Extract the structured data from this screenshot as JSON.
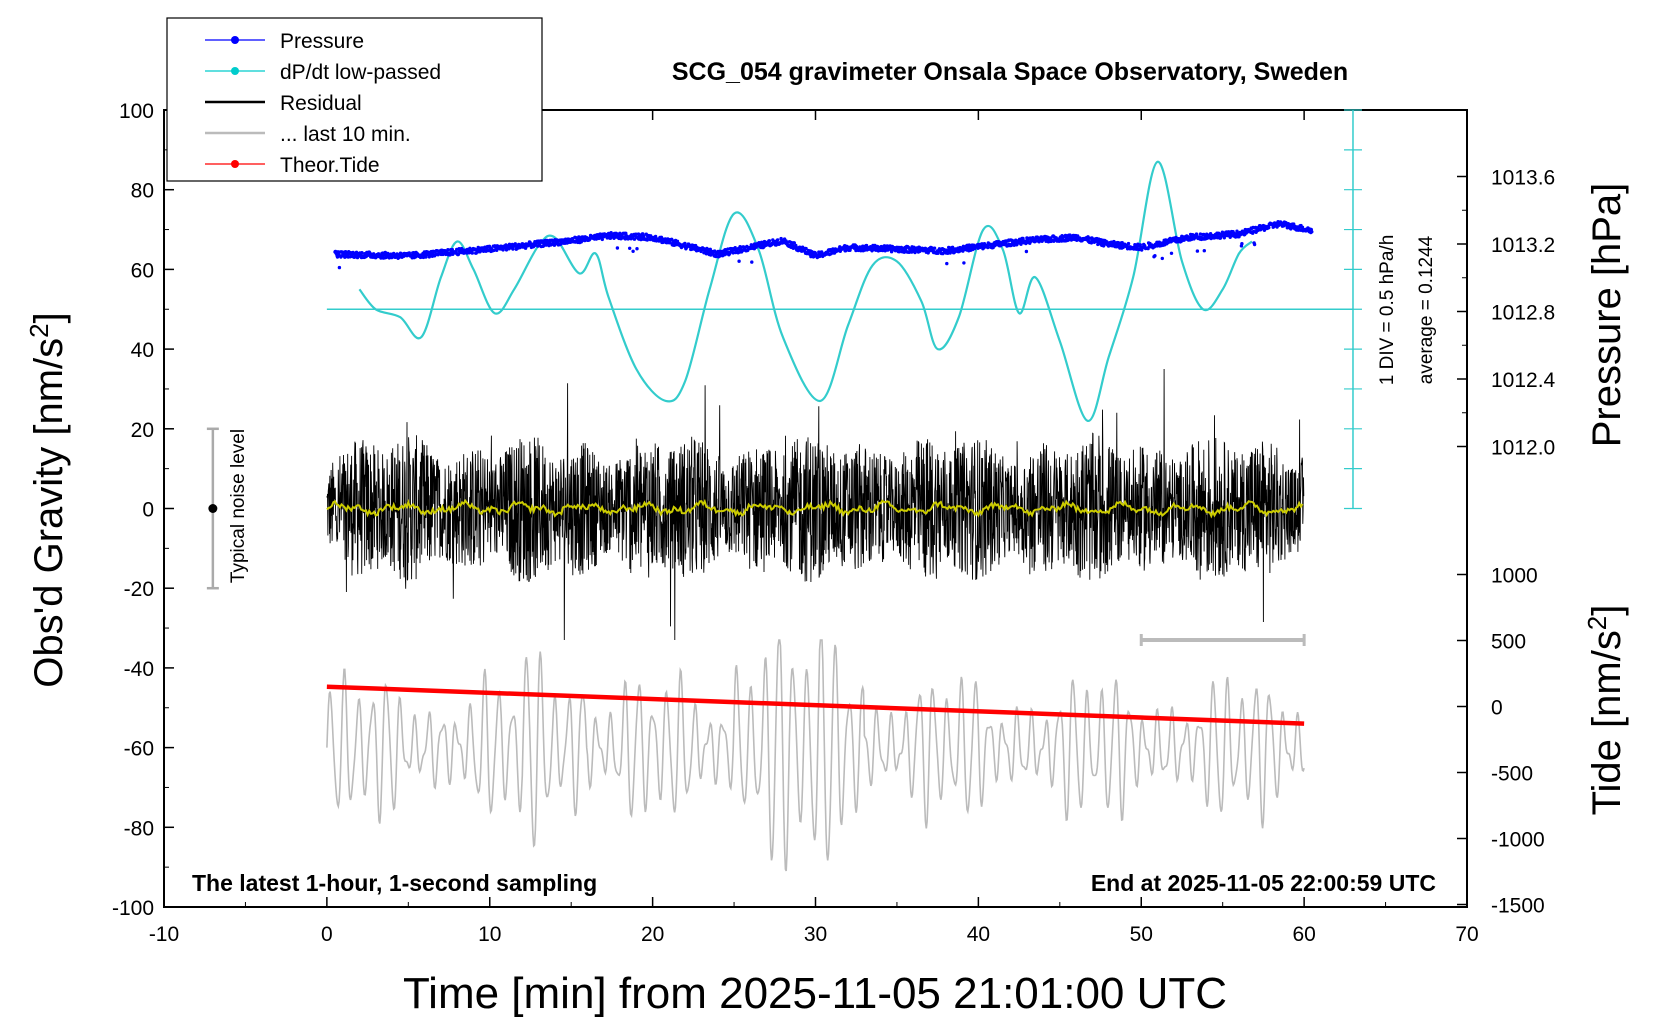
{
  "chart_data": {
    "type": "line",
    "title": "SCG_054 gravimeter Onsala Space Observatory, Sweden",
    "xlabel": "Time [min] from 2025-11-05 21:01:00 UTC",
    "ylabel_left": "Obs'd Gravity [nm/s",
    "ylabel_left_sup": "2",
    "ylabel_left_close": "]",
    "ylabel_right_pressure": "Pressure [hPa]",
    "ylabel_right_tide": "Tide [nm/s",
    "ylabel_right_tide_sup": "2",
    "ylabel_right_tide_close": "]",
    "xlim": [
      -10,
      70
    ],
    "ylim": [
      -100,
      100
    ],
    "x_ticks": [
      "-10",
      "0",
      "10",
      "20",
      "30",
      "40",
      "50",
      "60",
      "70"
    ],
    "y_ticks": [
      "100",
      "80",
      "60",
      "40",
      "20",
      "0",
      "-20",
      "-40",
      "-60",
      "-80",
      "-100"
    ],
    "pressure_ticks": [
      "1013.6",
      "1013.2",
      "1012.8",
      "1012.4",
      "1012.0"
    ],
    "pressure_tick_values": [
      1013.6,
      1013.2,
      1012.8,
      1012.4,
      1012.0
    ],
    "tide_ticks": [
      "1000",
      "500",
      "0",
      "-500",
      "-1000",
      "-1500"
    ],
    "tide_tick_values": [
      1000,
      500,
      0,
      -500,
      -1000,
      -1500
    ],
    "legend": [
      {
        "label": "Pressure",
        "color": "#0000ff",
        "marker": true
      },
      {
        "label": "dP/dt low-passed",
        "color": "#00cccc",
        "marker": true
      },
      {
        "label": "Residual",
        "color": "#000000",
        "marker": false
      },
      {
        "label": "... last 10 min.",
        "color": "#bbbbbb",
        "marker": false
      },
      {
        "label": "Theor.Tide",
        "color": "#ff0000",
        "marker": true
      }
    ],
    "legend_position": "top-left",
    "annotation_left": "The latest 1-hour, 1-second sampling",
    "annotation_right": "End at 2025-11-05 22:00:59 UTC",
    "noise_label": "Typical noise level",
    "dpdt_scale_label": "1 DIV = 0.5 hPa/h",
    "dpdt_average_label": "average = 0.1244",
    "colors": {
      "pressure": "#0000ff",
      "dpdt": "#33cccc",
      "residual": "#000000",
      "residual_smooth": "#cccc00",
      "last10": "#bbbbbb",
      "tide": "#ff0000"
    },
    "tide_series": {
      "name": "Theor.Tide",
      "x": [
        0,
        60
      ],
      "values": [
        150,
        -130
      ]
    },
    "dpdt_series": {
      "name": "dP/dt low-passed",
      "x": [
        2.0,
        3.0,
        4.5,
        5.8,
        7.0,
        8.0,
        9.0,
        10.3,
        11.5,
        13.0,
        14.0,
        15.5,
        16.5,
        17.3,
        19.0,
        20.8,
        22.0,
        23.5,
        25.0,
        26.5,
        28.0,
        30.3,
        32.0,
        33.5,
        35.0,
        36.5,
        37.5,
        38.8,
        40.3,
        41.5,
        42.5,
        43.5,
        45.0,
        46.7,
        48.0,
        49.5,
        51.0,
        52.5,
        53.8,
        55.0,
        56.0,
        56.8
      ],
      "values": [
        55,
        50,
        48,
        43,
        58,
        67,
        60,
        49,
        55,
        66,
        68,
        59,
        64,
        53,
        35,
        27,
        32,
        55,
        74,
        65,
        43,
        27,
        46,
        61,
        62,
        52,
        40,
        48,
        70,
        65,
        49,
        58,
        42,
        22,
        38,
        58,
        87,
        62,
        50,
        55,
        64,
        67
      ]
    },
    "pressure_series": {
      "name": "Pressure",
      "x": [
        0.5,
        5,
        10,
        15,
        17.5,
        20,
        24,
        28,
        30,
        32,
        38,
        43,
        46,
        48,
        50,
        53,
        56,
        58.5,
        60.5
      ],
      "values": [
        1013.14,
        1013.13,
        1013.17,
        1013.22,
        1013.25,
        1013.24,
        1013.14,
        1013.22,
        1013.13,
        1013.18,
        1013.16,
        1013.22,
        1013.24,
        1013.2,
        1013.18,
        1013.24,
        1013.26,
        1013.32,
        1013.28
      ]
    },
    "residual_series": {
      "name": "Residual",
      "x_range": [
        0,
        60
      ],
      "amplitude_range": [
        -33,
        35
      ],
      "center": 0
    },
    "last10_series": {
      "name": "... last 10 min.",
      "x_range": [
        0,
        60
      ],
      "center": -60,
      "amplitude_range": [
        -94,
        -33
      ]
    },
    "last10_bar": {
      "x": [
        50,
        60
      ],
      "y": -33
    },
    "noise_bar": {
      "x": -7,
      "y_range": [
        -20,
        20
      ]
    },
    "dpdt_axis": {
      "x": 63,
      "y_range": [
        0,
        100
      ],
      "zero_y": 50
    }
  }
}
